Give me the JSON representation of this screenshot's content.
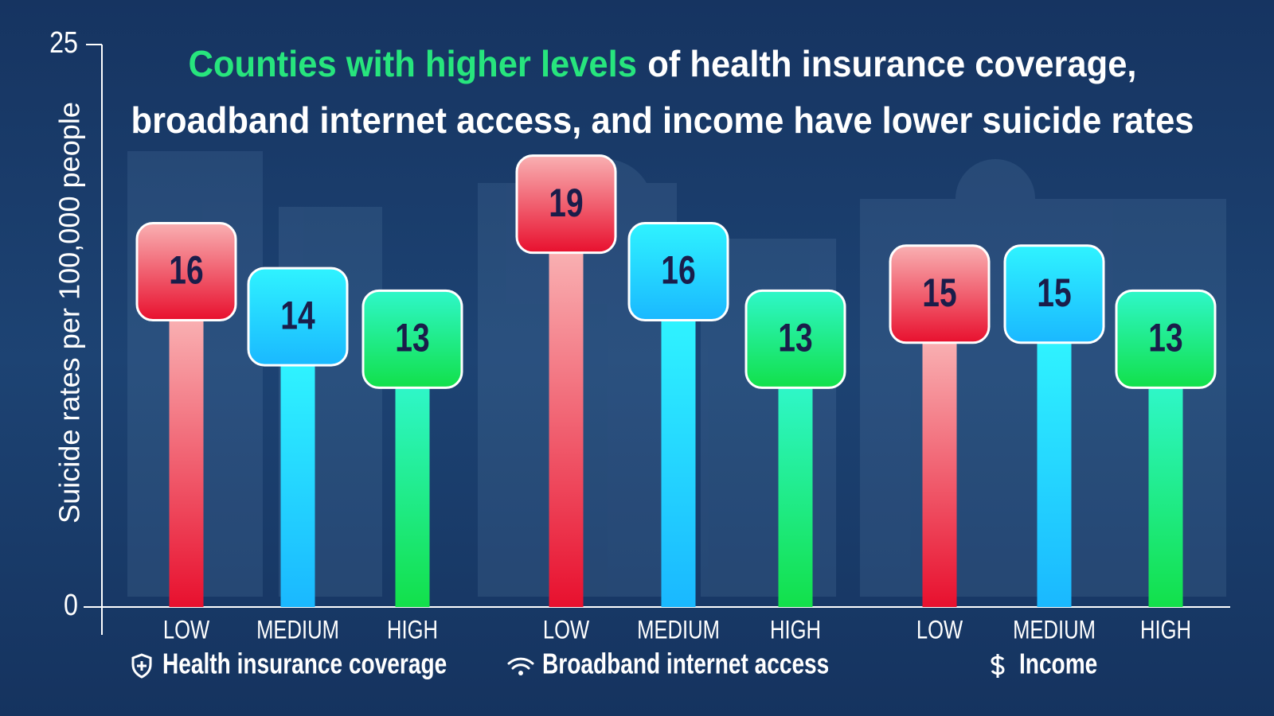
{
  "chart_data": {
    "type": "bar",
    "title": {
      "highlight": "Counties with higher levels",
      "lines": [
        "of health insurance coverage,",
        "broadband internet access, and income have lower suicide rates"
      ]
    },
    "y_label": "Suicide rates per 100,000 people",
    "ylim": [
      0,
      25
    ],
    "yticks": [
      0,
      25
    ],
    "colors": [
      [
        "#f9b0b2",
        "#e8102e"
      ],
      [
        "#2ff3ff",
        "#1ab8ff"
      ],
      [
        "#2ff7c9",
        "#12e04a"
      ]
    ],
    "groups": [
      {
        "name": "Health insurance coverage",
        "categories": [
          "LOW",
          "MEDIUM",
          "HIGH"
        ],
        "values": [
          16,
          14,
          13
        ]
      },
      {
        "name": "Broadband internet access",
        "categories": [
          "LOW",
          "MEDIUM",
          "HIGH"
        ],
        "values": [
          19,
          16,
          13
        ]
      },
      {
        "name": "Income",
        "categories": [
          "LOW",
          "MEDIUM",
          "HIGH"
        ],
        "values": [
          15,
          15,
          13
        ]
      }
    ]
  }
}
